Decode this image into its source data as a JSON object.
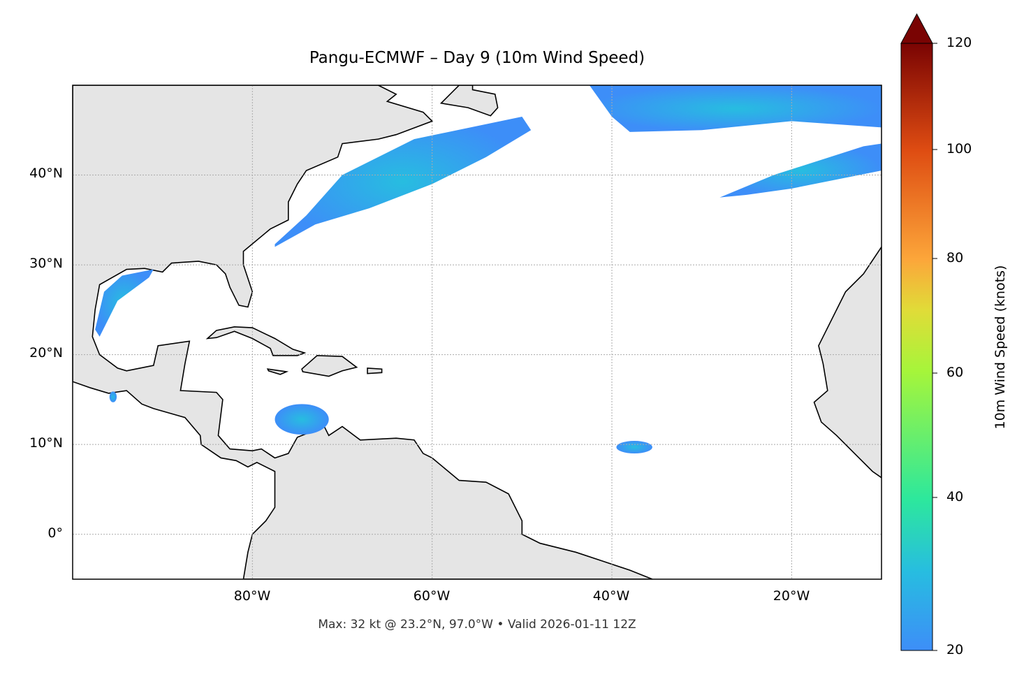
{
  "title": "Pangu-ECMWF – Day 9 (10m Wind Speed)",
  "footer": "Max: 32 kt @ 23.2°N, 97.0°W • Valid 2026-01-11 12Z",
  "chart_data": {
    "type": "heatmap",
    "title": "Pangu-ECMWF – Day 9 (10m Wind Speed)",
    "extent": {
      "lon": [
        -100,
        -10
      ],
      "lat": [
        -5,
        50
      ]
    },
    "x_ticks": [
      "80°W",
      "60°W",
      "40°W",
      "20°W"
    ],
    "y_ticks": [
      "0°",
      "10°N",
      "20°N",
      "30°N",
      "40°N"
    ],
    "grid": true,
    "colorbar": {
      "label": "10m Wind Speed (knots)",
      "ticks": [
        "20",
        "40",
        "60",
        "80",
        "100",
        "120"
      ],
      "range": [
        20,
        120
      ],
      "extend": "max",
      "colormap": "turbo"
    },
    "max": {
      "value_kt": 32,
      "lat": 23.2,
      "lon": -97.0
    },
    "valid": "2026-01-11 12Z",
    "colors": {
      "land": "#e5e5e5",
      "wind_low": "#3d8ef8",
      "wind_mid": "#27bde0"
    }
  }
}
